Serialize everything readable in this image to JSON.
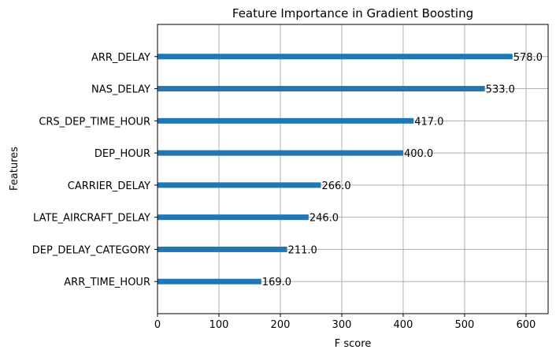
{
  "chart_data": {
    "type": "bar",
    "orientation": "horizontal",
    "title": "Feature Importance in Gradient Boosting",
    "xlabel": "F score",
    "ylabel": "Features",
    "categories": [
      "ARR_DELAY",
      "NAS_DELAY",
      "CRS_DEP_TIME_HOUR",
      "DEP_HOUR",
      "CARRIER_DELAY",
      "LATE_AIRCRAFT_DELAY",
      "DEP_DELAY_CATEGORY",
      "ARR_TIME_HOUR"
    ],
    "values": [
      578.0,
      533.0,
      417.0,
      400.0,
      266.0,
      246.0,
      211.0,
      169.0
    ],
    "value_labels": [
      "578.0",
      "533.0",
      "417.0",
      "400.0",
      "266.0",
      "246.0",
      "211.0",
      "169.0"
    ],
    "xlim": [
      0,
      636
    ],
    "xticks": [
      0,
      100,
      200,
      300,
      400,
      500,
      600
    ],
    "grid": true,
    "bar_color": "#1f77b4"
  }
}
